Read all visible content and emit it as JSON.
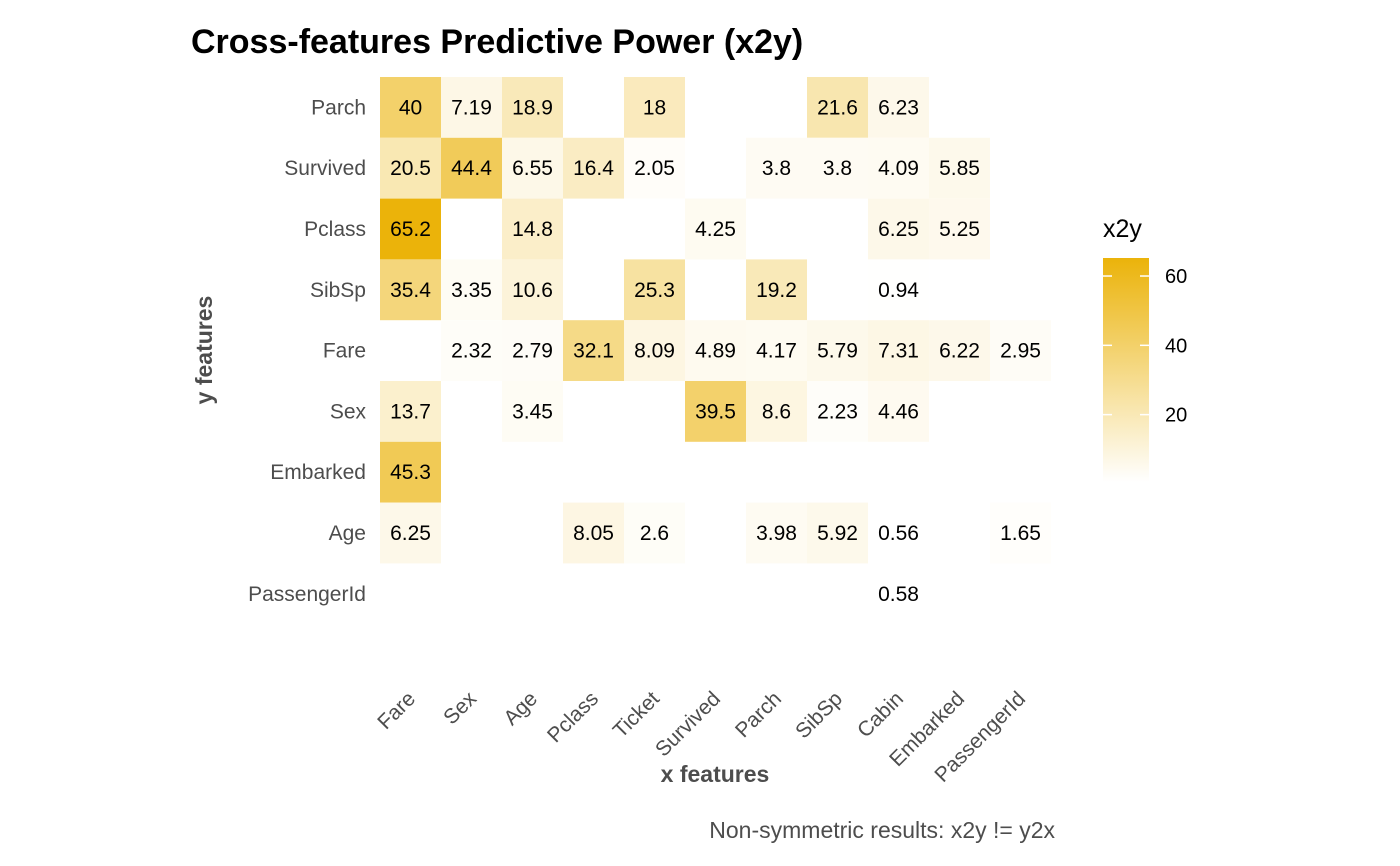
{
  "chart_data": {
    "type": "heatmap",
    "title": "Cross-features Predictive Power (x2y)",
    "xlabel": "x features",
    "ylabel": "y features",
    "caption": "Non-symmetric results: x2y != y2x",
    "x_categories": [
      "Fare",
      "Sex",
      "Age",
      "Pclass",
      "Ticket",
      "Survived",
      "Parch",
      "SibSp",
      "Cabin",
      "Embarked",
      "PassengerId"
    ],
    "y_categories": [
      "Parch",
      "Survived",
      "Pclass",
      "SibSp",
      "Fare",
      "Sex",
      "Embarked",
      "Age",
      "PassengerId"
    ],
    "values": [
      [
        40,
        7.19,
        18.9,
        null,
        18,
        null,
        null,
        21.6,
        6.23,
        null,
        null
      ],
      [
        20.5,
        44.4,
        6.55,
        16.4,
        2.05,
        null,
        3.8,
        3.8,
        4.09,
        5.85,
        null
      ],
      [
        65.2,
        null,
        14.8,
        null,
        null,
        4.25,
        null,
        null,
        6.25,
        5.25,
        null
      ],
      [
        35.4,
        3.35,
        10.6,
        null,
        25.3,
        null,
        19.2,
        null,
        0.94,
        null,
        null
      ],
      [
        null,
        2.32,
        2.79,
        32.1,
        8.09,
        4.89,
        4.17,
        5.79,
        7.31,
        6.22,
        2.95
      ],
      [
        13.7,
        null,
        3.45,
        null,
        null,
        39.5,
        8.6,
        2.23,
        4.46,
        null,
        null
      ],
      [
        45.3,
        null,
        null,
        null,
        null,
        null,
        null,
        null,
        null,
        null,
        null
      ],
      [
        6.25,
        null,
        null,
        8.05,
        2.6,
        null,
        3.98,
        5.92,
        0.56,
        null,
        1.65
      ],
      [
        null,
        null,
        null,
        null,
        null,
        null,
        null,
        null,
        0.58,
        null,
        null
      ]
    ],
    "legend": {
      "title": "x2y",
      "ticks": [
        20,
        40,
        60
      ],
      "range": [
        0.56,
        65.2
      ],
      "placement": "right"
    },
    "colors": {
      "low": "#ffffff",
      "high": "#ebb30a"
    },
    "grid": false
  }
}
